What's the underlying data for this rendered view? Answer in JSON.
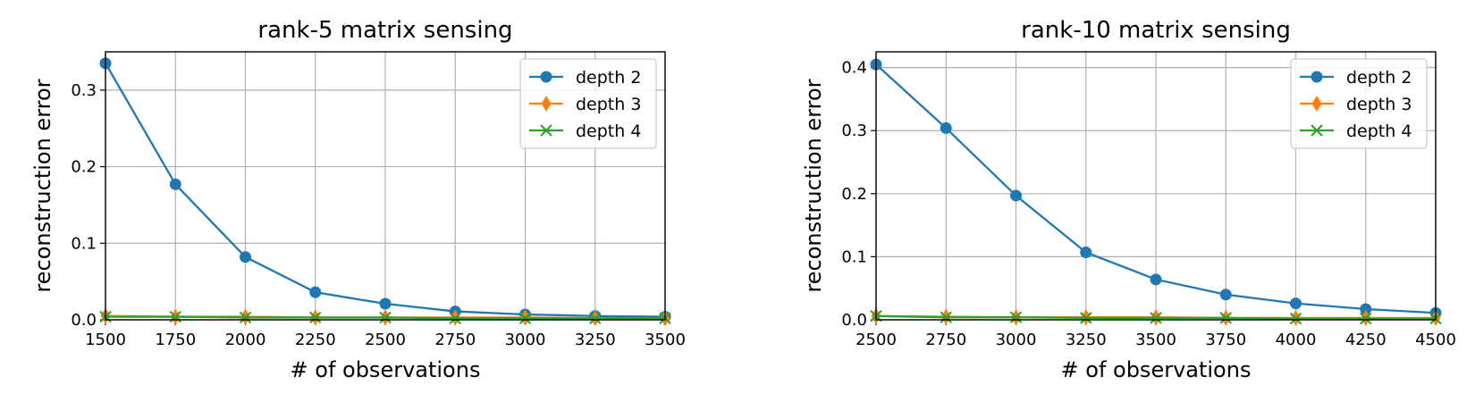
{
  "chart_data": [
    {
      "type": "line",
      "title": "rank-5 matrix sensing",
      "xlabel": "# of observations",
      "ylabel": "reconstruction error",
      "xlim": [
        1500,
        3500
      ],
      "ylim": [
        0,
        0.35
      ],
      "xticks": [
        "1500",
        "1750",
        "2000",
        "2250",
        "2500",
        "2750",
        "3000",
        "3250",
        "3500"
      ],
      "yticks": [
        "0.0",
        "0.1",
        "0.2",
        "0.3"
      ],
      "grid": true,
      "legend_position": "top-right",
      "x": [
        1500,
        1750,
        2000,
        2250,
        2500,
        2750,
        3000,
        3250,
        3500
      ],
      "series": [
        {
          "name": "depth 2",
          "color": "#1f77b4",
          "marker": "circle",
          "values": [
            0.335,
            0.177,
            0.082,
            0.036,
            0.021,
            0.011,
            0.007,
            0.005,
            0.004
          ]
        },
        {
          "name": "depth 3",
          "color": "#ff7f0e",
          "marker": "thin-diamond",
          "values": [
            0.005,
            0.004,
            0.004,
            0.003,
            0.003,
            0.003,
            0.003,
            0.002,
            0.002
          ]
        },
        {
          "name": "depth 4",
          "color": "#2ca02c",
          "marker": "x",
          "values": [
            0.004,
            0.004,
            0.003,
            0.003,
            0.003,
            0.002,
            0.002,
            0.002,
            0.002
          ]
        }
      ]
    },
    {
      "type": "line",
      "title": "rank-10 matrix sensing",
      "xlabel": "# of observations",
      "ylabel": "reconstruction error",
      "xlim": [
        2500,
        4500
      ],
      "ylim": [
        0,
        0.425
      ],
      "xticks": [
        "2500",
        "2750",
        "3000",
        "3250",
        "3500",
        "3750",
        "4000",
        "4250",
        "4500"
      ],
      "yticks": [
        "0.0",
        "0.1",
        "0.2",
        "0.3",
        "0.4"
      ],
      "grid": true,
      "legend_position": "top-right",
      "x": [
        2500,
        2750,
        3000,
        3250,
        3500,
        3750,
        4000,
        4250,
        4500
      ],
      "series": [
        {
          "name": "depth 2",
          "color": "#1f77b4",
          "marker": "circle",
          "values": [
            0.405,
            0.304,
            0.197,
            0.107,
            0.064,
            0.04,
            0.026,
            0.017,
            0.011
          ]
        },
        {
          "name": "depth 3",
          "color": "#ff7f0e",
          "marker": "thin-diamond",
          "values": [
            0.006,
            0.005,
            0.004,
            0.004,
            0.004,
            0.003,
            0.003,
            0.003,
            0.003
          ]
        },
        {
          "name": "depth 4",
          "color": "#2ca02c",
          "marker": "x",
          "values": [
            0.006,
            0.004,
            0.004,
            0.003,
            0.003,
            0.003,
            0.002,
            0.002,
            0.002
          ]
        }
      ]
    }
  ]
}
